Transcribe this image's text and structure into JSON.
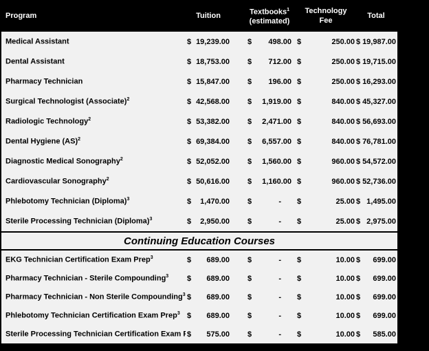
{
  "header": {
    "program": "Program",
    "tuition": "Tuition",
    "textbooks": "Textbooks",
    "textbooks_sup": "1",
    "textbooks_line2": "(estimated)",
    "technology_line1": "Technology",
    "technology_line2": "Fee",
    "total": "Total"
  },
  "currency_symbol": "$",
  "empty_value": "-",
  "section_title": "Continuing Education Courses",
  "colors": {
    "header_bg": "#000000",
    "header_text": "#ffffff",
    "body_bg": "#f1f1f1",
    "body_text": "#000000"
  },
  "programs": [
    {
      "name": "Medical Assistant",
      "sup": "",
      "tuition": "19,239.00",
      "textbooks": "498.00",
      "technology_fee": "250.00",
      "total": "19,987.00"
    },
    {
      "name": "Dental Assistant",
      "sup": "",
      "tuition": "18,753.00",
      "textbooks": "712.00",
      "technology_fee": "250.00",
      "total": "19,715.00"
    },
    {
      "name": "Pharmacy Technician",
      "sup": "",
      "tuition": "15,847.00",
      "textbooks": "196.00",
      "technology_fee": "250.00",
      "total": "16,293.00"
    },
    {
      "name": "Surgical Technologist (Associate)",
      "sup": "2",
      "tuition": "42,568.00",
      "textbooks": "1,919.00",
      "technology_fee": "840.00",
      "total": "45,327.00"
    },
    {
      "name": "Radiologic Technology",
      "sup": "2",
      "tuition": "53,382.00",
      "textbooks": "2,471.00",
      "technology_fee": "840.00",
      "total": "56,693.00"
    },
    {
      "name": "Dental Hygiene (AS)",
      "sup": "2",
      "tuition": "69,384.00",
      "textbooks": "6,557.00",
      "technology_fee": "840.00",
      "total": "76,781.00"
    },
    {
      "name": "Diagnostic Medical Sonography",
      "sup": "2",
      "tuition": "52,052.00",
      "textbooks": "1,560.00",
      "technology_fee": "960.00",
      "total": "54,572.00"
    },
    {
      "name": "Cardiovascular Sonography",
      "sup": "2",
      "tuition": "50,616.00",
      "textbooks": "1,160.00",
      "technology_fee": "960.00",
      "total": "52,736.00"
    },
    {
      "name": "Phlebotomy Technician (Diploma)",
      "sup": "3",
      "tuition": "1,470.00",
      "textbooks": "-",
      "technology_fee": "25.00",
      "total": "1,495.00"
    },
    {
      "name": "Sterile Processing Technician (Diploma)",
      "sup": "3",
      "tuition": "2,950.00",
      "textbooks": "-",
      "technology_fee": "25.00",
      "total": "2,975.00"
    }
  ],
  "continuing_education": [
    {
      "name": "EKG Technician Certification Exam Prep",
      "sup": "3",
      "tuition": "689.00",
      "textbooks": "-",
      "technology_fee": "10.00",
      "total": "699.00"
    },
    {
      "name": "Pharmacy Technician - Sterile Compounding",
      "sup": "3",
      "tuition": "689.00",
      "textbooks": "-",
      "technology_fee": "10.00",
      "total": "699.00"
    },
    {
      "name": "Pharmacy Technician - Non Sterile Compounding",
      "sup": "3",
      "tuition": "689.00",
      "textbooks": "-",
      "technology_fee": "10.00",
      "total": "699.00"
    },
    {
      "name": "Phlebotomy Technician Certification Exam Prep",
      "sup": "3",
      "tuition": "689.00",
      "textbooks": "-",
      "technology_fee": "10.00",
      "total": "699.00"
    },
    {
      "name": "Sterile Processing Technician Certification Exam Prep",
      "sup": "",
      "tuition": "575.00",
      "textbooks": "-",
      "technology_fee": "10.00",
      "total": "585.00"
    }
  ]
}
